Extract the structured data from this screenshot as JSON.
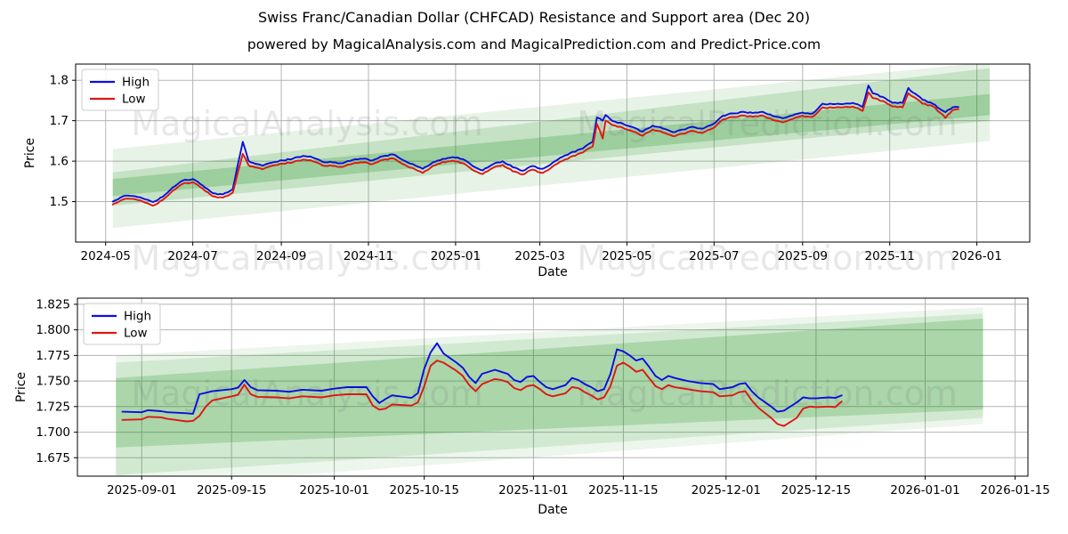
{
  "title": "Swiss Franc/Canadian Dollar (CHFCAD) Resistance and Support area (Dec 20)",
  "subtitle": "powered by MagicalAnalysis.com and MagicalPrediction.com and Predict-Price.com",
  "watermarks": [
    "MagicalAnalysis.com",
    "MagicalPrediction.com"
  ],
  "colors": {
    "high": "#0d0ddd",
    "low": "#dd1812",
    "band": "#118a11",
    "grid": "#b5b5b5",
    "spine": "#000000",
    "text": "#000000",
    "watermark": "#6f6f6f"
  },
  "chart_data": [
    {
      "name": "chfcad-daily-chart",
      "type": "line",
      "xlabel": "Date",
      "ylabel": "Price",
      "x_domain": [
        "2024-04-10",
        "2026-02-07"
      ],
      "y_domain": [
        1.4,
        1.84
      ],
      "x_ticks": [
        {
          "date": "2024-05-01",
          "label": "2024-05"
        },
        {
          "date": "2024-07-01",
          "label": "2024-07"
        },
        {
          "date": "2024-09-01",
          "label": "2024-09"
        },
        {
          "date": "2024-11-01",
          "label": "2024-11"
        },
        {
          "date": "2025-01-01",
          "label": "2025-01"
        },
        {
          "date": "2025-03-01",
          "label": "2025-03"
        },
        {
          "date": "2025-05-01",
          "label": "2025-05"
        },
        {
          "date": "2025-07-01",
          "label": "2025-07"
        },
        {
          "date": "2025-09-01",
          "label": "2025-09"
        },
        {
          "date": "2025-11-01",
          "label": "2025-11"
        },
        {
          "date": "2026-01-01",
          "label": "2026-01"
        }
      ],
      "y_ticks": [
        {
          "value": 1.5,
          "label": "1.5"
        },
        {
          "value": 1.6,
          "label": "1.6"
        },
        {
          "value": 1.7,
          "label": "1.7"
        },
        {
          "value": 1.8,
          "label": "1.8"
        }
      ],
      "legend_items": [
        {
          "label": "High",
          "color": "#0d0ddd"
        },
        {
          "label": "Low",
          "color": "#dd1812"
        }
      ],
      "bands": [
        {
          "x0": "2024-05-06",
          "x1": "2026-01-10",
          "top0": 1.63,
          "bot0": 1.435,
          "top1": 1.845,
          "bot1": 1.65,
          "opacity": 0.1
        },
        {
          "x0": "2024-05-06",
          "x1": "2026-01-10",
          "top0": 1.572,
          "bot0": 1.49,
          "top1": 1.83,
          "bot1": 1.7,
          "opacity": 0.16
        },
        {
          "x0": "2024-05-06",
          "x1": "2026-01-10",
          "top0": 1.556,
          "bot0": 1.514,
          "top1": 1.766,
          "bot1": 1.714,
          "opacity": 0.22
        }
      ],
      "series": {
        "dates": [
          "2024-05-06",
          "2024-05-13",
          "2024-05-20",
          "2024-05-27",
          "2024-06-03",
          "2024-06-10",
          "2024-06-17",
          "2024-06-24",
          "2024-07-01",
          "2024-07-08",
          "2024-07-15",
          "2024-07-22",
          "2024-07-29",
          "2024-08-05",
          "2024-08-09",
          "2024-08-12",
          "2024-08-19",
          "2024-08-26",
          "2024-09-02",
          "2024-09-09",
          "2024-09-16",
          "2024-09-23",
          "2024-09-30",
          "2024-10-07",
          "2024-10-14",
          "2024-10-21",
          "2024-10-28",
          "2024-11-04",
          "2024-11-11",
          "2024-11-18",
          "2024-11-25",
          "2024-12-02",
          "2024-12-09",
          "2024-12-16",
          "2024-12-23",
          "2024-12-30",
          "2025-01-06",
          "2025-01-13",
          "2025-01-20",
          "2025-01-27",
          "2025-02-03",
          "2025-02-10",
          "2025-02-17",
          "2025-02-24",
          "2025-03-03",
          "2025-03-10",
          "2025-03-17",
          "2025-03-24",
          "2025-03-31",
          "2025-04-07",
          "2025-04-10",
          "2025-04-14",
          "2025-04-16",
          "2025-04-21",
          "2025-04-28",
          "2025-05-05",
          "2025-05-12",
          "2025-05-19",
          "2025-05-26",
          "2025-06-02",
          "2025-06-09",
          "2025-06-16",
          "2025-06-23",
          "2025-06-30",
          "2025-07-07",
          "2025-07-14",
          "2025-07-21",
          "2025-07-28",
          "2025-08-04",
          "2025-08-11",
          "2025-08-18",
          "2025-08-25",
          "2025-09-01",
          "2025-09-08",
          "2025-09-15",
          "2025-09-22",
          "2025-09-29",
          "2025-10-06",
          "2025-10-13",
          "2025-10-17",
          "2025-10-20",
          "2025-10-27",
          "2025-11-03",
          "2025-11-10",
          "2025-11-14",
          "2025-11-17",
          "2025-11-24",
          "2025-12-01",
          "2025-12-08",
          "2025-12-10",
          "2025-12-15",
          "2025-12-19"
        ],
        "high": [
          1.5,
          1.513,
          1.514,
          1.508,
          1.499,
          1.512,
          1.535,
          1.552,
          1.556,
          1.54,
          1.521,
          1.518,
          1.531,
          1.648,
          1.601,
          1.596,
          1.589,
          1.597,
          1.602,
          1.606,
          1.613,
          1.609,
          1.598,
          1.597,
          1.595,
          1.603,
          1.606,
          1.602,
          1.612,
          1.617,
          1.603,
          1.593,
          1.581,
          1.597,
          1.606,
          1.61,
          1.605,
          1.588,
          1.577,
          1.592,
          1.6,
          1.585,
          1.576,
          1.588,
          1.581,
          1.596,
          1.611,
          1.623,
          1.631,
          1.648,
          1.708,
          1.7,
          1.714,
          1.699,
          1.693,
          1.684,
          1.673,
          1.688,
          1.681,
          1.672,
          1.678,
          1.685,
          1.68,
          1.691,
          1.712,
          1.718,
          1.722,
          1.719,
          1.722,
          1.712,
          1.706,
          1.713,
          1.72,
          1.718,
          1.742,
          1.741,
          1.741,
          1.744,
          1.734,
          1.787,
          1.768,
          1.759,
          1.744,
          1.744,
          1.781,
          1.77,
          1.752,
          1.742,
          1.725,
          1.721,
          1.733,
          1.734
        ],
        "low": [
          1.493,
          1.505,
          1.507,
          1.5,
          1.49,
          1.504,
          1.527,
          1.544,
          1.548,
          1.532,
          1.513,
          1.51,
          1.522,
          1.618,
          1.59,
          1.587,
          1.58,
          1.589,
          1.594,
          1.597,
          1.604,
          1.6,
          1.589,
          1.588,
          1.586,
          1.594,
          1.597,
          1.593,
          1.603,
          1.607,
          1.593,
          1.583,
          1.571,
          1.588,
          1.598,
          1.601,
          1.595,
          1.578,
          1.568,
          1.583,
          1.591,
          1.575,
          1.567,
          1.579,
          1.571,
          1.587,
          1.601,
          1.613,
          1.621,
          1.636,
          1.692,
          1.656,
          1.7,
          1.689,
          1.683,
          1.674,
          1.663,
          1.678,
          1.671,
          1.662,
          1.668,
          1.675,
          1.67,
          1.681,
          1.703,
          1.709,
          1.713,
          1.71,
          1.713,
          1.702,
          1.696,
          1.704,
          1.712,
          1.71,
          1.733,
          1.732,
          1.733,
          1.735,
          1.724,
          1.77,
          1.756,
          1.749,
          1.735,
          1.733,
          1.768,
          1.76,
          1.742,
          1.736,
          1.715,
          1.707,
          1.726,
          1.729
        ]
      }
    },
    {
      "name": "chfcad-recent-chart",
      "type": "line",
      "xlabel": "Date",
      "ylabel": "Price",
      "x_domain": [
        "2025-08-22",
        "2026-01-17"
      ],
      "y_domain": [
        1.657,
        1.831
      ],
      "x_ticks": [
        {
          "date": "2025-09-01",
          "label": "2025-09-01"
        },
        {
          "date": "2025-09-15",
          "label": "2025-09-15"
        },
        {
          "date": "2025-10-01",
          "label": "2025-10-01"
        },
        {
          "date": "2025-10-15",
          "label": "2025-10-15"
        },
        {
          "date": "2025-11-01",
          "label": "2025-11-01"
        },
        {
          "date": "2025-11-15",
          "label": "2025-11-15"
        },
        {
          "date": "2025-12-01",
          "label": "2025-12-01"
        },
        {
          "date": "2025-12-15",
          "label": "2025-12-15"
        },
        {
          "date": "2026-01-01",
          "label": "2026-01-01"
        },
        {
          "date": "2026-01-15",
          "label": "2026-01-15"
        }
      ],
      "y_ticks": [
        {
          "value": 1.675,
          "label": "1.675"
        },
        {
          "value": 1.7,
          "label": "1.700"
        },
        {
          "value": 1.725,
          "label": "1.725"
        },
        {
          "value": 1.75,
          "label": "1.750"
        },
        {
          "value": 1.775,
          "label": "1.775"
        },
        {
          "value": 1.8,
          "label": "1.800"
        },
        {
          "value": 1.825,
          "label": "1.825"
        }
      ],
      "legend_items": [
        {
          "label": "High",
          "color": "#0d0ddd"
        },
        {
          "label": "Low",
          "color": "#dd1812"
        }
      ],
      "bands": [
        {
          "x0": "2025-08-28",
          "x1": "2026-01-10",
          "top0": 1.775,
          "bot0": 1.645,
          "top1": 1.822,
          "bot1": 1.708,
          "opacity": 0.08
        },
        {
          "x0": "2025-08-28",
          "x1": "2026-01-10",
          "top0": 1.768,
          "bot0": 1.658,
          "top1": 1.816,
          "bot1": 1.714,
          "opacity": 0.12
        },
        {
          "x0": "2025-08-28",
          "x1": "2026-01-10",
          "top0": 1.753,
          "bot0": 1.685,
          "top1": 1.811,
          "bot1": 1.722,
          "opacity": 0.2
        }
      ],
      "series": {
        "dates": [
          "2025-08-29",
          "2025-09-01",
          "2025-09-02",
          "2025-09-04",
          "2025-09-05",
          "2025-09-08",
          "2025-09-09",
          "2025-09-10",
          "2025-09-11",
          "2025-09-12",
          "2025-09-15",
          "2025-09-16",
          "2025-09-17",
          "2025-09-18",
          "2025-09-19",
          "2025-09-22",
          "2025-09-24",
          "2025-09-26",
          "2025-09-29",
          "2025-10-01",
          "2025-10-03",
          "2025-10-06",
          "2025-10-07",
          "2025-10-08",
          "2025-10-09",
          "2025-10-10",
          "2025-10-13",
          "2025-10-14",
          "2025-10-15",
          "2025-10-16",
          "2025-10-17",
          "2025-10-18",
          "2025-10-20",
          "2025-10-21",
          "2025-10-22",
          "2025-10-23",
          "2025-10-24",
          "2025-10-26",
          "2025-10-27",
          "2025-10-28",
          "2025-10-29",
          "2025-10-30",
          "2025-10-31",
          "2025-11-01",
          "2025-11-02",
          "2025-11-03",
          "2025-11-04",
          "2025-11-06",
          "2025-11-07",
          "2025-11-08",
          "2025-11-09",
          "2025-11-10",
          "2025-11-11",
          "2025-11-12",
          "2025-11-13",
          "2025-11-14",
          "2025-11-15",
          "2025-11-16",
          "2025-11-17",
          "2025-11-18",
          "2025-11-19",
          "2025-11-20",
          "2025-11-21",
          "2025-11-22",
          "2025-11-23",
          "2025-11-25",
          "2025-11-27",
          "2025-11-29",
          "2025-11-30",
          "2025-12-02",
          "2025-12-03",
          "2025-12-04",
          "2025-12-05",
          "2025-12-06",
          "2025-12-08",
          "2025-12-09",
          "2025-12-10",
          "2025-12-12",
          "2025-12-13",
          "2025-12-14",
          "2025-12-15",
          "2025-12-17",
          "2025-12-18",
          "2025-12-19"
        ],
        "high": [
          1.72,
          1.7195,
          1.7215,
          1.7205,
          1.7195,
          1.7185,
          1.718,
          1.737,
          1.7385,
          1.74,
          1.742,
          1.7435,
          1.751,
          1.744,
          1.741,
          1.7405,
          1.7395,
          1.7415,
          1.7405,
          1.7425,
          1.744,
          1.744,
          1.735,
          1.7285,
          1.7325,
          1.736,
          1.7335,
          1.738,
          1.762,
          1.778,
          1.787,
          1.777,
          1.768,
          1.763,
          1.754,
          1.748,
          1.757,
          1.761,
          1.759,
          1.757,
          1.751,
          1.749,
          1.754,
          1.755,
          1.749,
          1.744,
          1.742,
          1.746,
          1.753,
          1.751,
          1.747,
          1.744,
          1.74,
          1.742,
          1.757,
          1.781,
          1.779,
          1.775,
          1.77,
          1.772,
          1.764,
          1.755,
          1.751,
          1.755,
          1.753,
          1.75,
          1.748,
          1.747,
          1.742,
          1.744,
          1.747,
          1.748,
          1.74,
          1.734,
          1.725,
          1.72,
          1.721,
          1.729,
          1.734,
          1.733,
          1.733,
          1.734,
          1.7335,
          1.736
        ],
        "low": [
          1.712,
          1.7125,
          1.715,
          1.7145,
          1.713,
          1.7105,
          1.711,
          1.716,
          1.725,
          1.731,
          1.735,
          1.7365,
          1.7465,
          1.737,
          1.7345,
          1.734,
          1.733,
          1.735,
          1.734,
          1.736,
          1.737,
          1.737,
          1.726,
          1.722,
          1.723,
          1.727,
          1.726,
          1.729,
          1.745,
          1.765,
          1.77,
          1.768,
          1.76,
          1.755,
          1.746,
          1.74,
          1.747,
          1.752,
          1.751,
          1.749,
          1.743,
          1.741,
          1.745,
          1.746,
          1.742,
          1.737,
          1.735,
          1.738,
          1.744,
          1.743,
          1.739,
          1.736,
          1.732,
          1.734,
          1.745,
          1.765,
          1.768,
          1.764,
          1.759,
          1.761,
          1.753,
          1.745,
          1.742,
          1.746,
          1.744,
          1.742,
          1.74,
          1.739,
          1.735,
          1.736,
          1.739,
          1.74,
          1.731,
          1.724,
          1.714,
          1.708,
          1.706,
          1.714,
          1.723,
          1.725,
          1.7245,
          1.725,
          1.7245,
          1.73
        ]
      }
    }
  ]
}
